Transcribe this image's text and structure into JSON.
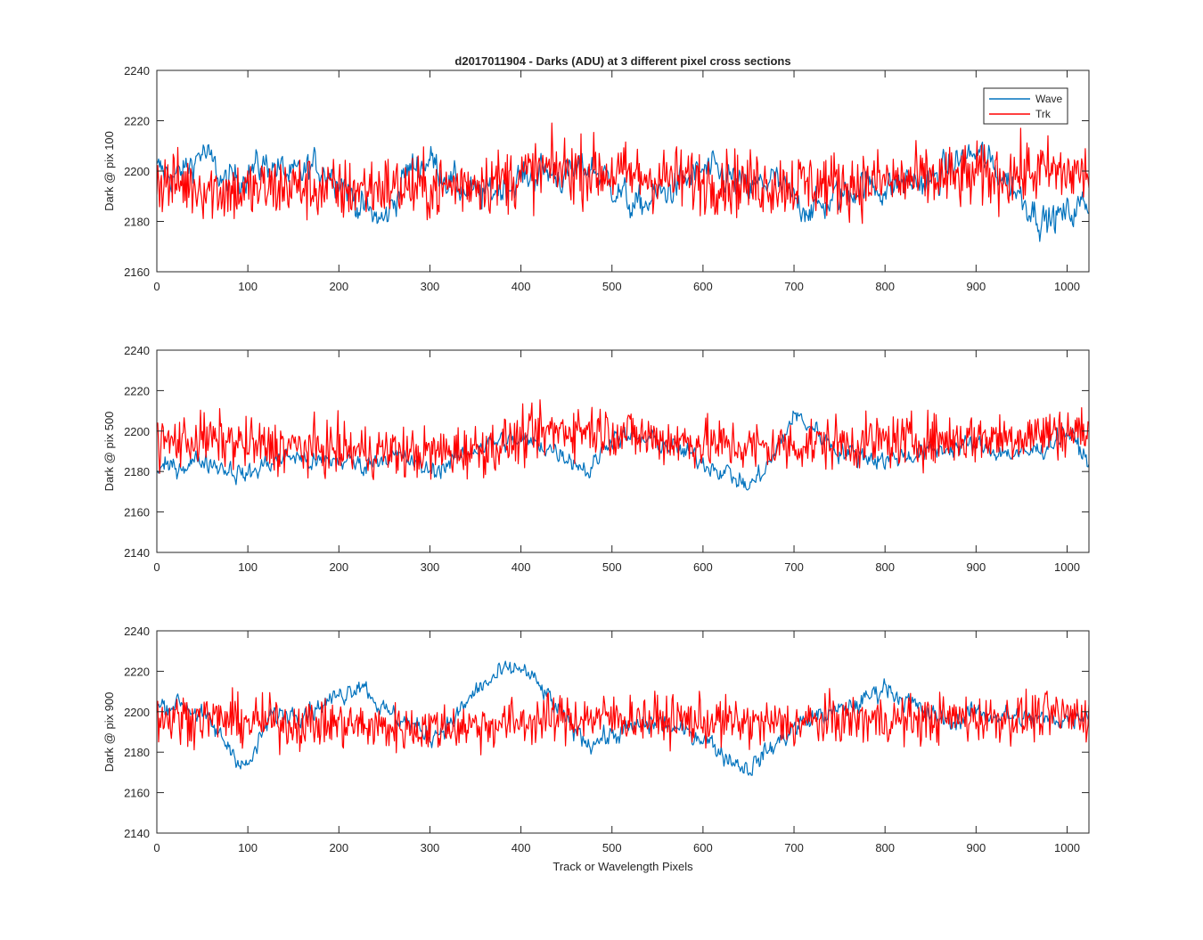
{
  "figure": {
    "title": "d2017011904 - Darks (ADU) at 3 different pixel cross sections",
    "xlabel": "Track or Wavelength Pixels"
  },
  "colors": {
    "wave": "#0072BD",
    "trk": "#FF0000",
    "axes": "#262626"
  },
  "legend": {
    "position": "top-right",
    "entries": [
      "Wave",
      "Trk"
    ]
  },
  "chart_data": [
    {
      "type": "line",
      "ylabel": "Dark @ pix 100",
      "xlim": [
        0,
        1024
      ],
      "ylim": [
        2160,
        2240
      ],
      "xticks": [
        0,
        100,
        200,
        300,
        400,
        500,
        600,
        700,
        800,
        900,
        1000
      ],
      "yticks": [
        2160,
        2180,
        2200,
        2220,
        2240
      ],
      "grid": false,
      "series": [
        {
          "name": "Wave",
          "color": "#0072BD",
          "x": [
            0,
            25,
            50,
            75,
            100,
            125,
            150,
            175,
            200,
            225,
            250,
            275,
            300,
            325,
            350,
            375,
            400,
            425,
            450,
            475,
            500,
            525,
            550,
            575,
            600,
            625,
            650,
            675,
            700,
            725,
            750,
            775,
            800,
            825,
            850,
            875,
            900,
            925,
            950,
            975,
            1000,
            1024
          ],
          "y": [
            2200,
            2198,
            2208,
            2195,
            2200,
            2203,
            2197,
            2202,
            2198,
            2185,
            2180,
            2200,
            2205,
            2195,
            2190,
            2193,
            2197,
            2200,
            2198,
            2202,
            2195,
            2185,
            2190,
            2195,
            2200,
            2198,
            2192,
            2197,
            2188,
            2185,
            2190,
            2195,
            2193,
            2196,
            2195,
            2203,
            2207,
            2200,
            2190,
            2180,
            2183,
            2188
          ]
        },
        {
          "name": "Trk",
          "color": "#FF0000",
          "x": [
            0,
            25,
            50,
            75,
            100,
            125,
            150,
            175,
            200,
            225,
            250,
            275,
            300,
            325,
            350,
            375,
            400,
            425,
            450,
            475,
            500,
            525,
            550,
            575,
            600,
            625,
            650,
            675,
            700,
            725,
            750,
            775,
            800,
            825,
            850,
            875,
            900,
            925,
            950,
            975,
            1000,
            1024
          ],
          "y": [
            2196,
            2195,
            2194,
            2192,
            2192,
            2193,
            2194,
            2193,
            2192,
            2193,
            2194,
            2193,
            2193,
            2194,
            2196,
            2196,
            2198,
            2200,
            2201,
            2200,
            2199,
            2198,
            2197,
            2197,
            2196,
            2196,
            2195,
            2195,
            2195,
            2195,
            2195,
            2195,
            2196,
            2196,
            2197,
            2197,
            2198,
            2198,
            2199,
            2200,
            2199,
            2199
          ]
        }
      ]
    },
    {
      "type": "line",
      "ylabel": "Dark @ pix 500",
      "xlim": [
        0,
        1024
      ],
      "ylim": [
        2140,
        2240
      ],
      "xticks": [
        0,
        100,
        200,
        300,
        400,
        500,
        600,
        700,
        800,
        900,
        1000
      ],
      "yticks": [
        2140,
        2160,
        2180,
        2200,
        2220,
        2240
      ],
      "grid": false,
      "series": [
        {
          "name": "Wave",
          "color": "#0072BD",
          "x": [
            0,
            25,
            50,
            75,
            100,
            125,
            150,
            175,
            200,
            225,
            250,
            275,
            300,
            325,
            350,
            375,
            400,
            425,
            450,
            475,
            500,
            525,
            550,
            575,
            600,
            625,
            650,
            675,
            700,
            725,
            750,
            775,
            800,
            825,
            850,
            875,
            900,
            925,
            950,
            975,
            1000,
            1024
          ],
          "y": [
            2180,
            2183,
            2186,
            2182,
            2178,
            2185,
            2188,
            2184,
            2186,
            2183,
            2188,
            2186,
            2180,
            2185,
            2192,
            2195,
            2195,
            2193,
            2188,
            2180,
            2198,
            2196,
            2195,
            2190,
            2185,
            2180,
            2172,
            2185,
            2208,
            2200,
            2190,
            2188,
            2186,
            2188,
            2190,
            2192,
            2193,
            2190,
            2188,
            2192,
            2200,
            2185
          ]
        },
        {
          "name": "Trk",
          "color": "#FF0000",
          "x": [
            0,
            25,
            50,
            75,
            100,
            125,
            150,
            175,
            200,
            225,
            250,
            275,
            300,
            325,
            350,
            375,
            400,
            425,
            450,
            475,
            500,
            525,
            550,
            575,
            600,
            625,
            650,
            675,
            700,
            725,
            750,
            775,
            800,
            825,
            850,
            875,
            900,
            925,
            950,
            975,
            1000,
            1024
          ],
          "y": [
            2194,
            2195,
            2196,
            2195,
            2193,
            2192,
            2192,
            2191,
            2191,
            2190,
            2190,
            2189,
            2189,
            2190,
            2191,
            2193,
            2196,
            2199,
            2201,
            2201,
            2200,
            2198,
            2196,
            2195,
            2194,
            2193,
            2192,
            2192,
            2193,
            2194,
            2194,
            2194,
            2195,
            2195,
            2196,
            2196,
            2197,
            2197,
            2198,
            2199,
            2200,
            2199
          ]
        }
      ]
    },
    {
      "type": "line",
      "ylabel": "Dark @ pix 900",
      "xlim": [
        0,
        1024
      ],
      "ylim": [
        2140,
        2240
      ],
      "xticks": [
        0,
        100,
        200,
        300,
        400,
        500,
        600,
        700,
        800,
        900,
        1000
      ],
      "yticks": [
        2140,
        2160,
        2180,
        2200,
        2220,
        2240
      ],
      "grid": false,
      "series": [
        {
          "name": "Wave",
          "color": "#0072BD",
          "x": [
            0,
            25,
            50,
            75,
            100,
            125,
            150,
            175,
            200,
            225,
            250,
            275,
            300,
            325,
            350,
            375,
            400,
            425,
            450,
            475,
            500,
            525,
            550,
            575,
            600,
            625,
            650,
            675,
            700,
            725,
            750,
            775,
            800,
            825,
            850,
            875,
            900,
            925,
            950,
            975,
            1000,
            1024
          ],
          "y": [
            2202,
            2205,
            2198,
            2185,
            2172,
            2198,
            2200,
            2202,
            2208,
            2215,
            2200,
            2195,
            2188,
            2195,
            2210,
            2218,
            2222,
            2210,
            2195,
            2185,
            2188,
            2192,
            2195,
            2190,
            2188,
            2178,
            2172,
            2182,
            2192,
            2198,
            2200,
            2205,
            2213,
            2205,
            2198,
            2195,
            2200,
            2198,
            2197,
            2196,
            2197,
            2200
          ]
        },
        {
          "name": "Trk",
          "color": "#FF0000",
          "x": [
            0,
            25,
            50,
            75,
            100,
            125,
            150,
            175,
            200,
            225,
            250,
            275,
            300,
            325,
            350,
            375,
            400,
            425,
            450,
            475,
            500,
            525,
            550,
            575,
            600,
            625,
            650,
            675,
            700,
            725,
            750,
            775,
            800,
            825,
            850,
            875,
            900,
            925,
            950,
            975,
            1000,
            1024
          ],
          "y": [
            2197,
            2197,
            2197,
            2196,
            2195,
            2195,
            2194,
            2194,
            2194,
            2193,
            2192,
            2192,
            2192,
            2193,
            2193,
            2194,
            2195,
            2196,
            2197,
            2197,
            2197,
            2197,
            2196,
            2196,
            2195,
            2195,
            2194,
            2194,
            2194,
            2195,
            2196,
            2196,
            2196,
            2196,
            2196,
            2197,
            2197,
            2197,
            2197,
            2198,
            2198,
            2198
          ]
        }
      ]
    }
  ]
}
